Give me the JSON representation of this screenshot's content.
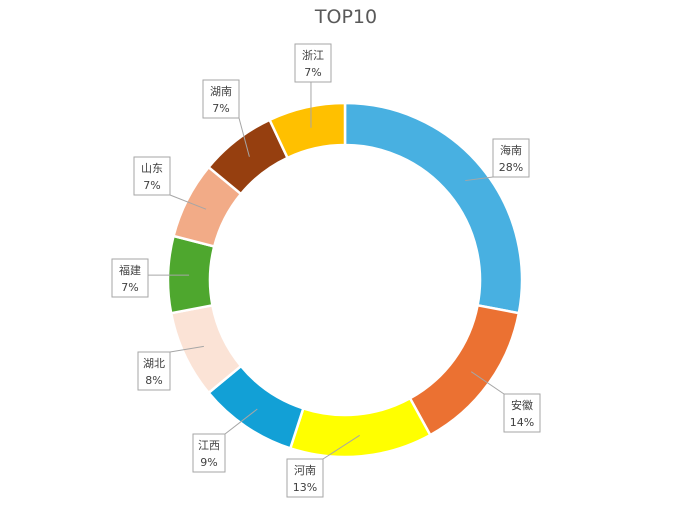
{
  "chart_data": {
    "type": "pie",
    "style": "donut",
    "title": "TOP10",
    "legend": "none",
    "slices": [
      {
        "label": "海南",
        "value": 28,
        "text": "28%",
        "color": "#48b0e1"
      },
      {
        "label": "安徽",
        "value": 14,
        "text": "14%",
        "color": "#eb7132"
      },
      {
        "label": "河南",
        "value": 13,
        "text": "13%",
        "color": "#ffff00"
      },
      {
        "label": "江西",
        "value": 9,
        "text": "9%",
        "color": "#12a0d6"
      },
      {
        "label": "湖北",
        "value": 8,
        "text": "8%",
        "color": "#fbe3d6"
      },
      {
        "label": "福建",
        "value": 7,
        "text": "7%",
        "color": "#4ea72e"
      },
      {
        "label": "山东",
        "value": 7,
        "text": "7%",
        "color": "#f2ab87"
      },
      {
        "label": "湖南",
        "value": 7,
        "text": "7%",
        "color": "#963f0f"
      },
      {
        "label": "浙江",
        "value": 7,
        "text": "7%",
        "color": "#ffc000"
      }
    ]
  }
}
